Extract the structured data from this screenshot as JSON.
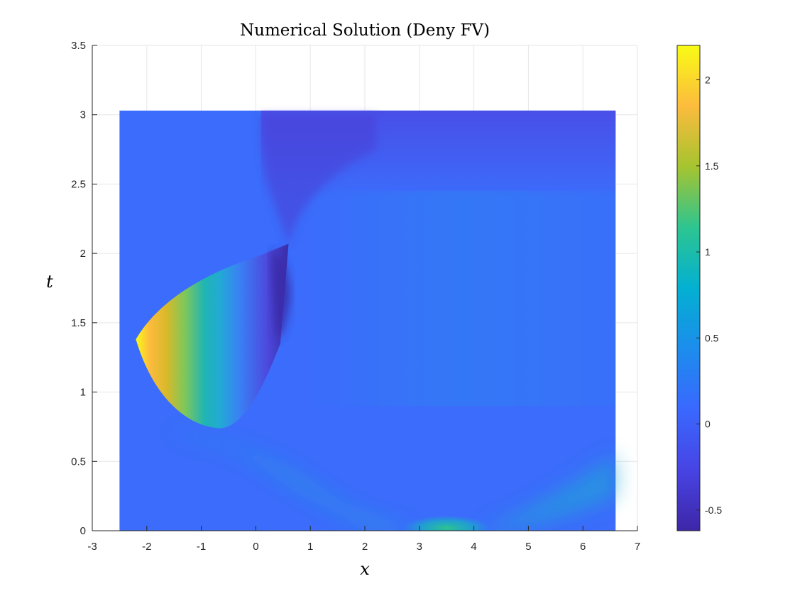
{
  "chart_data": {
    "type": "heatmap",
    "title": "Numerical Solution (Deny FV)",
    "xlabel": "x",
    "ylabel": "t",
    "xlim": [
      -3,
      7
    ],
    "ylim": [
      0,
      3.5
    ],
    "xticks": [
      "-3",
      "-2",
      "-1",
      "0",
      "1",
      "2",
      "3",
      "4",
      "5",
      "6",
      "7"
    ],
    "yticks": [
      "0",
      "0.5",
      "1",
      "1.5",
      "2",
      "2.5",
      "3",
      "3.5"
    ],
    "domain_x": [
      -2.5,
      6.6
    ],
    "domain_t": [
      0,
      3.03
    ],
    "grid": true,
    "colormap": "parula",
    "colorbar": {
      "range": [
        -0.62,
        2.2
      ],
      "ticks": [
        "-0.5",
        "0",
        "0.5",
        "1",
        "1.5",
        "2"
      ]
    },
    "features": [
      {
        "name": "left lobe",
        "x_range": [
          -2.2,
          0.6
        ],
        "t_range": [
          0.6,
          2.07
        ],
        "max_value": 2.2
      },
      {
        "name": "negative region",
        "x": 0.6,
        "t": 1.85,
        "min_value": -0.62
      },
      {
        "name": "initial bump",
        "x": 3.5,
        "t": 0.02,
        "value": 0.8
      }
    ]
  }
}
